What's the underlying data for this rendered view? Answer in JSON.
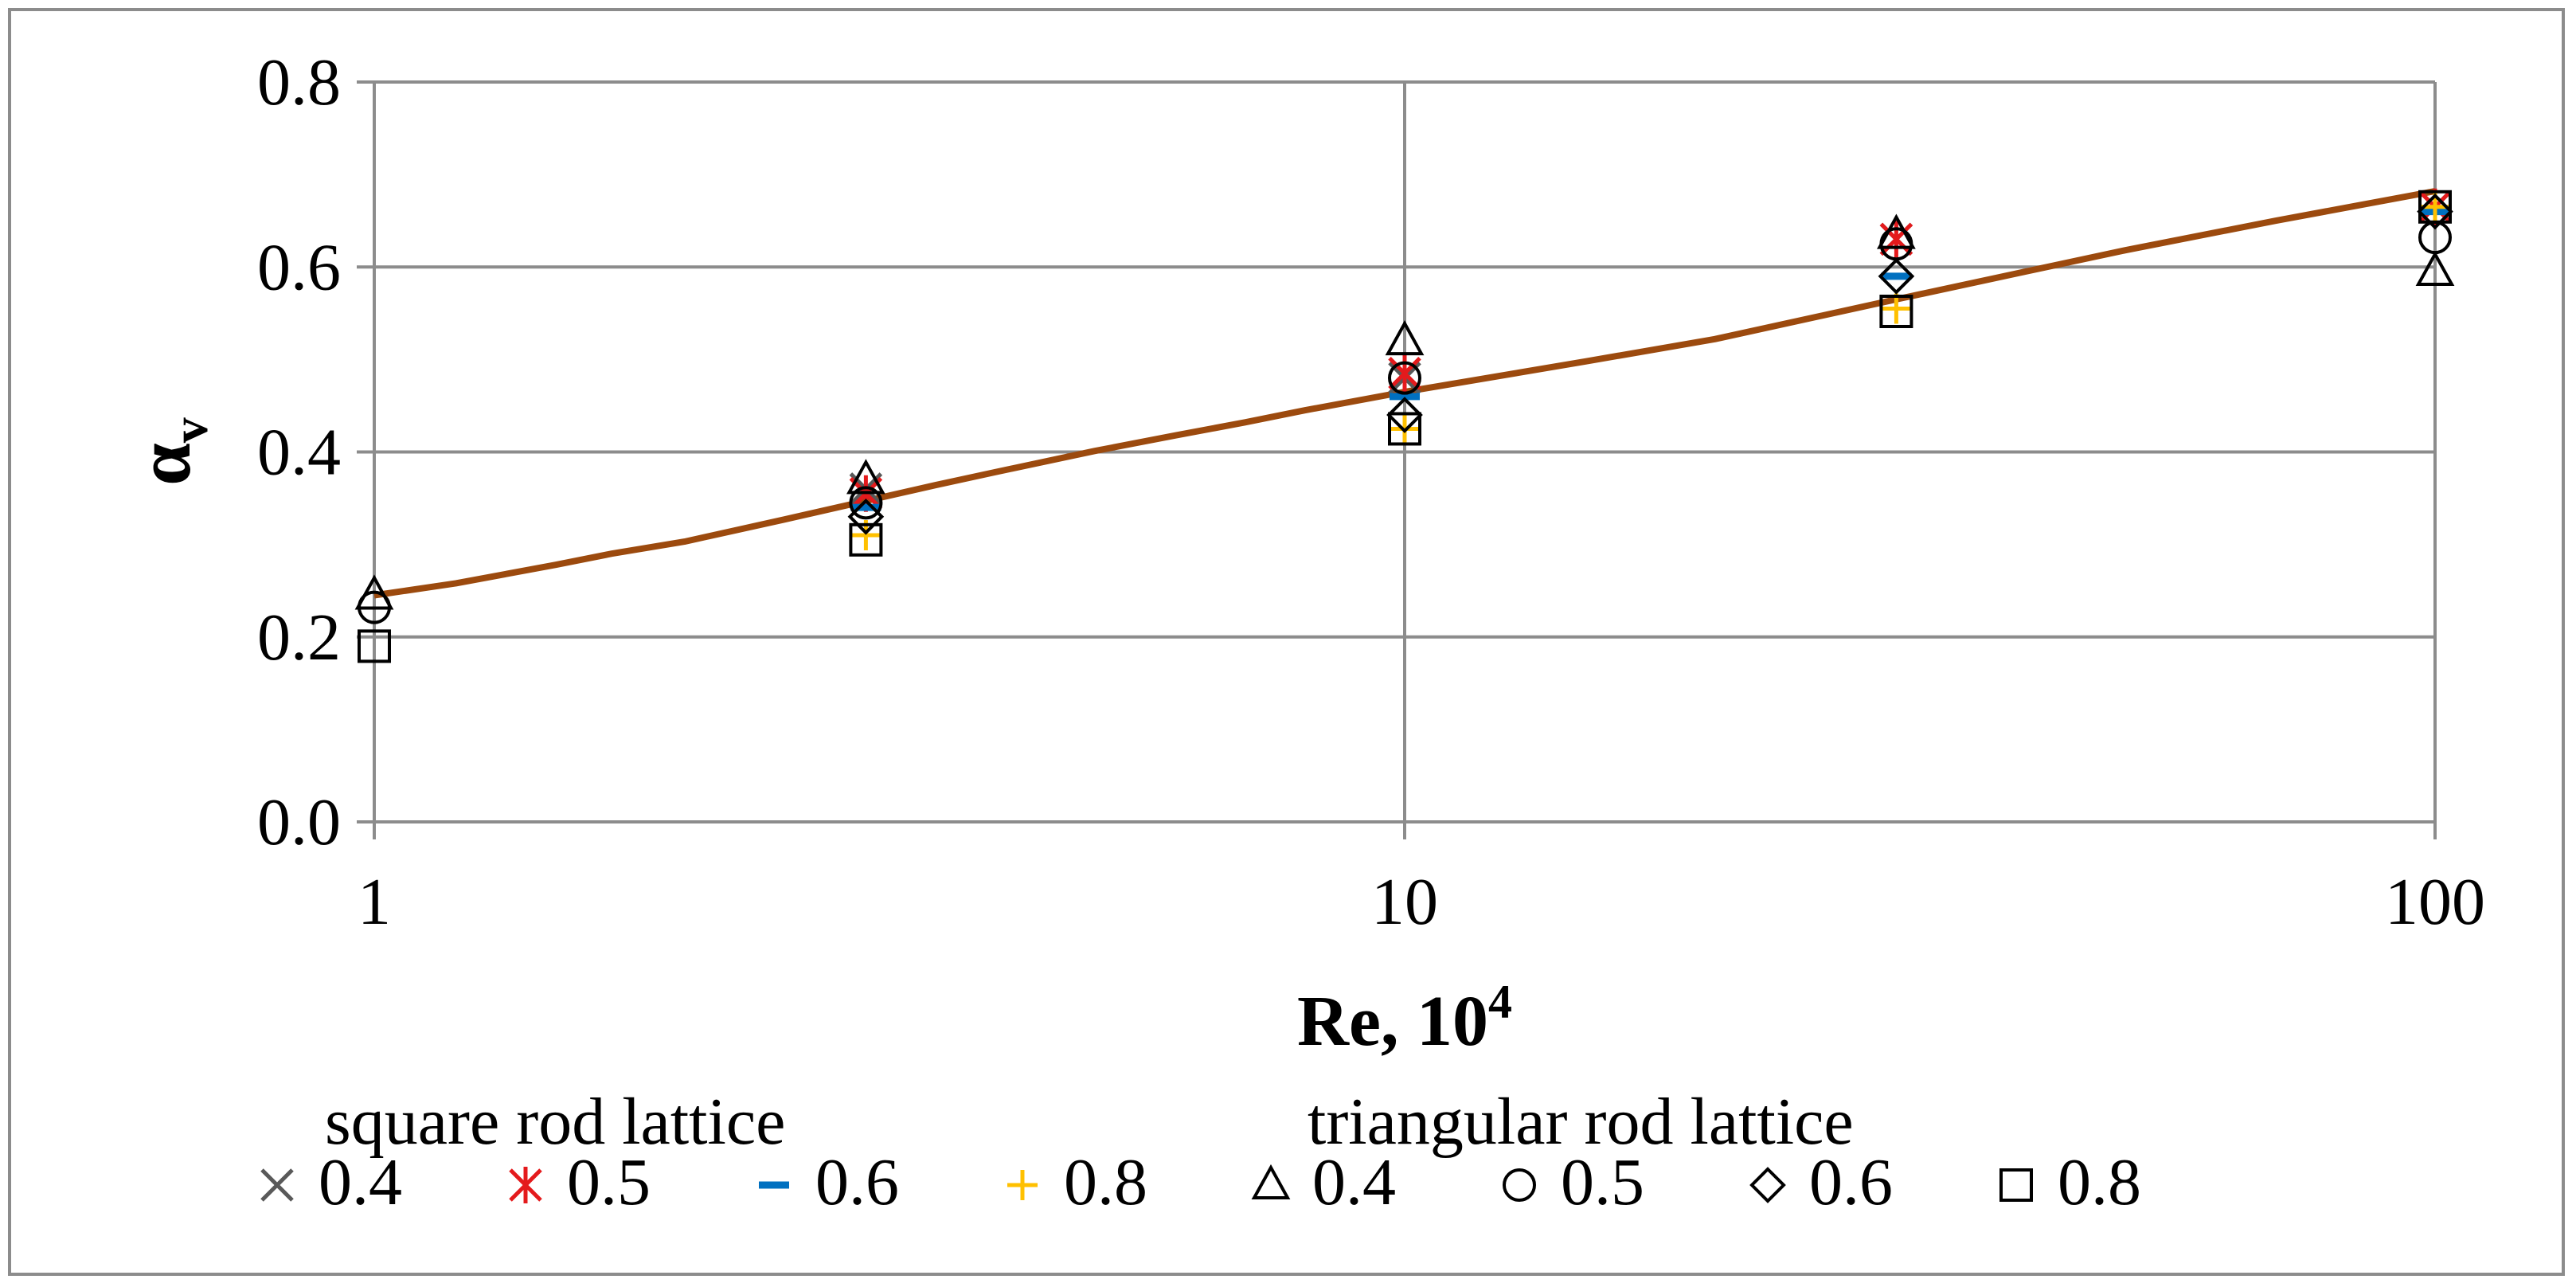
{
  "chart_data": {
    "type": "scatter",
    "title": "",
    "xlabel": "Re, 10",
    "xlabel_superscript": "4",
    "ylabel": "α",
    "ylabel_subscript": "v",
    "x_scale": "log",
    "xlim": [
      1,
      100
    ],
    "ylim": [
      0.0,
      0.8
    ],
    "x_ticks": [
      1,
      10,
      100
    ],
    "x_tick_labels": [
      "1",
      "10",
      "100"
    ],
    "y_ticks": [
      0.0,
      0.2,
      0.4,
      0.6,
      0.8
    ],
    "y_tick_labels": [
      "0.0",
      "0.2",
      "0.4",
      "0.6",
      "0.8"
    ],
    "grid": "horizontal",
    "legend_position": "bottom",
    "legend_groups": [
      {
        "title": "square rod lattice",
        "entries": [
          0,
          1,
          2,
          3
        ]
      },
      {
        "title": "triangular rod lattice",
        "entries": [
          4,
          5,
          6,
          7
        ]
      }
    ],
    "series": [
      {
        "name": "0.4",
        "group": "square rod lattice",
        "marker": "x",
        "color": "#595959",
        "x": [
          3,
          10,
          30,
          100
        ],
        "y": [
          0.36,
          0.48,
          0.63,
          0.665
        ]
      },
      {
        "name": "0.5",
        "group": "square rod lattice",
        "marker": "star",
        "color": "#e41a1c",
        "x": [
          3,
          10,
          30,
          100
        ],
        "y": [
          0.355,
          0.485,
          0.63,
          0.665
        ]
      },
      {
        "name": "0.6",
        "group": "square rod lattice",
        "marker": "dash",
        "color": "#0070c0",
        "x": [
          3,
          10,
          30,
          100
        ],
        "y": [
          0.34,
          0.46,
          0.59,
          0.66
        ]
      },
      {
        "name": "0.8",
        "group": "square rod lattice",
        "marker": "plus",
        "color": "#ffc000",
        "x": [
          3,
          10,
          30,
          100
        ],
        "y": [
          0.31,
          0.425,
          0.555,
          0.665
        ]
      },
      {
        "name": "0.4",
        "group": "triangular rod lattice",
        "marker": "triangle",
        "color": "#000000",
        "x": [
          1,
          3,
          10,
          30,
          100
        ],
        "y": [
          0.245,
          0.37,
          0.52,
          0.635,
          0.595
        ]
      },
      {
        "name": "0.5",
        "group": "triangular rod lattice",
        "marker": "circle",
        "color": "#000000",
        "x": [
          1,
          3,
          10,
          30,
          100
        ],
        "y": [
          0.232,
          0.345,
          0.48,
          0.625,
          0.632
        ]
      },
      {
        "name": "0.6",
        "group": "triangular rod lattice",
        "marker": "diamond",
        "color": "#000000",
        "x": [
          3,
          10,
          30,
          100
        ],
        "y": [
          0.33,
          0.44,
          0.59,
          0.66
        ]
      },
      {
        "name": "0.8",
        "group": "triangular rod lattice",
        "marker": "square",
        "color": "#000000",
        "x": [
          1,
          3,
          10,
          30,
          100
        ],
        "y": [
          0.19,
          0.305,
          0.425,
          0.552,
          0.665
        ]
      }
    ],
    "fit_line": {
      "color": "#9c4a0e",
      "x": [
        1,
        1.2,
        1.5,
        1.7,
        2,
        2.5,
        3,
        3.5,
        4,
        5,
        6,
        7,
        8,
        10,
        15,
        20,
        30,
        40,
        50,
        70,
        100
      ],
      "y": [
        0.245,
        0.258,
        0.278,
        0.29,
        0.303,
        0.327,
        0.347,
        0.364,
        0.378,
        0.401,
        0.418,
        0.432,
        0.445,
        0.465,
        0.498,
        0.522,
        0.565,
        0.595,
        0.618,
        0.65,
        0.682
      ]
    }
  }
}
